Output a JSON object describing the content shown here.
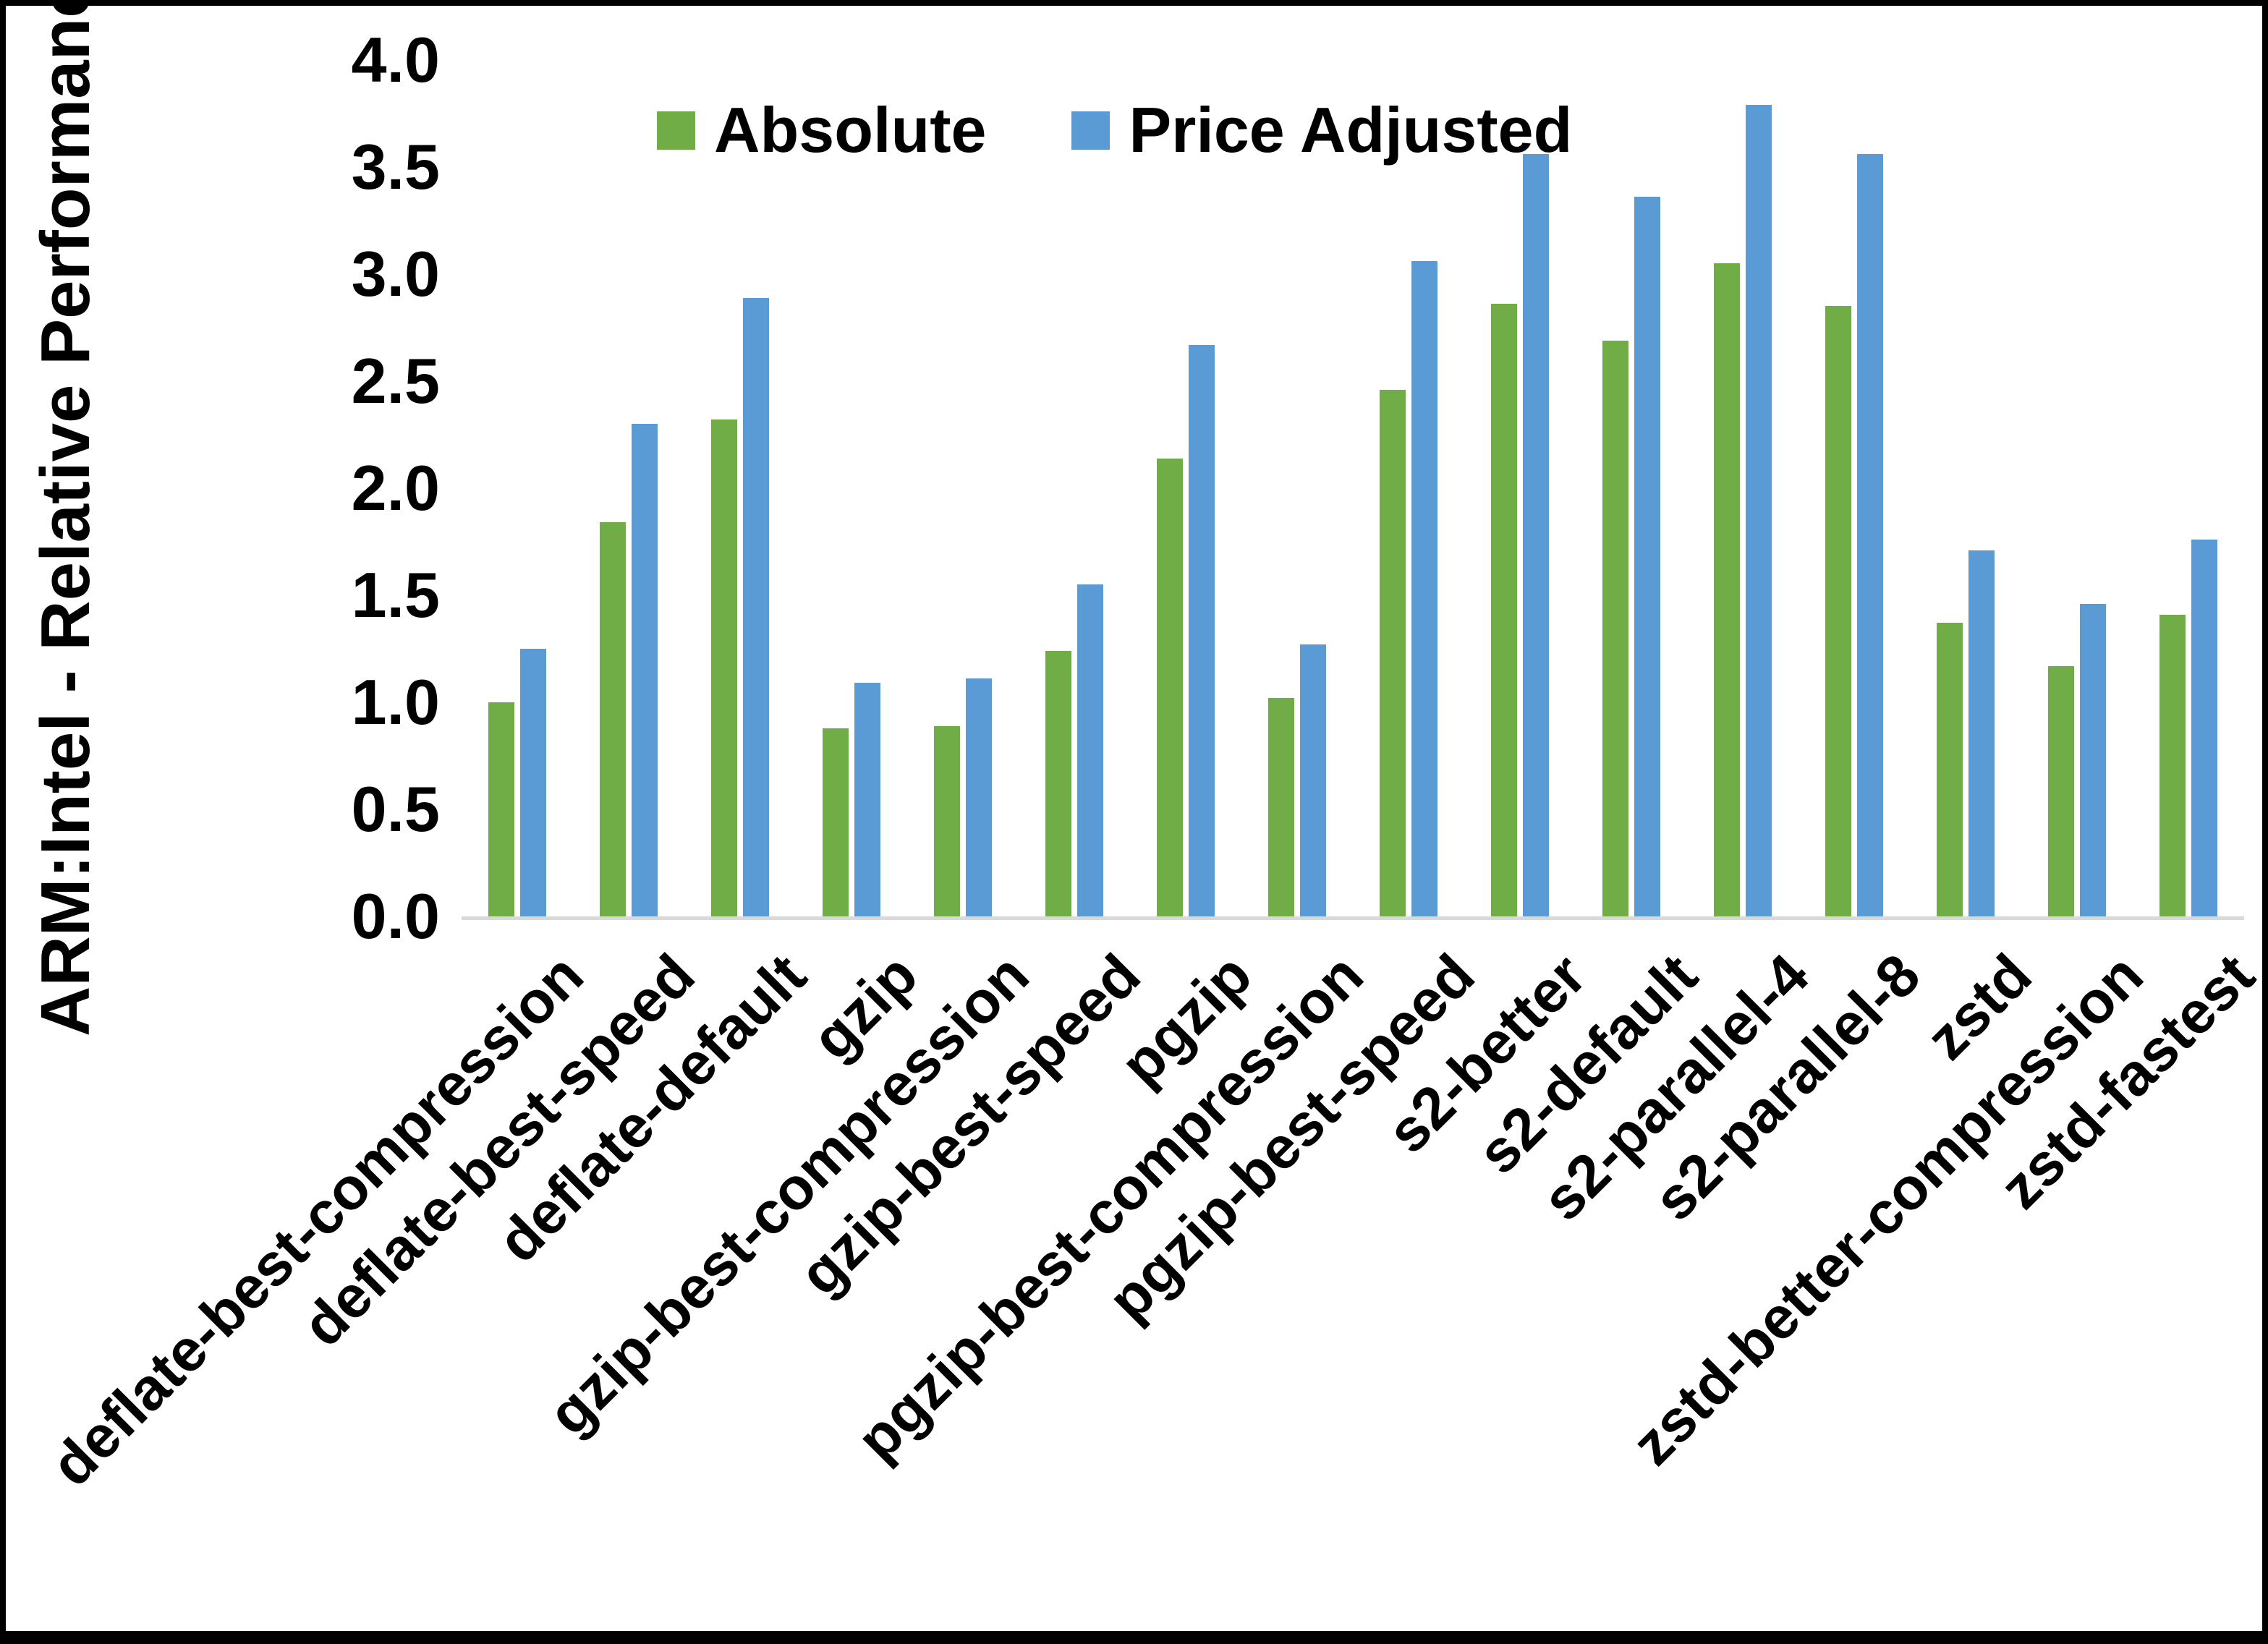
{
  "chart_data": {
    "type": "bar",
    "title": "",
    "xlabel": "",
    "ylabel": "ARM:Intel - Relative Performance",
    "ylim": [
      0.0,
      4.0
    ],
    "ytick_step": 0.5,
    "ytick_labels": [
      "4.0",
      "3.5",
      "3.0",
      "2.5",
      "2.0",
      "1.5",
      "1.0",
      "0.5",
      "0.0"
    ],
    "grid": false,
    "legend_position": "top-center",
    "axis_line_color": "#D9D9D9",
    "text_color": "#000000",
    "background_color": "#FFFFFF",
    "categories": [
      "deflate-best-compression",
      "deflate-best-speed",
      "deflate-default",
      "gzip",
      "gzip-best-compression",
      "gzip-best-speed",
      "pgzip",
      "pgzip-best-compression",
      "pgzip-best-speed",
      "s2-better",
      "s2-default",
      "s2-parallel-4",
      "s2-parallel-8",
      "zstd",
      "zstd-better-compression",
      "zstd-fastest"
    ],
    "series": [
      {
        "name": "Absolute",
        "color": "#70AD47",
        "values": [
          1.0,
          1.84,
          2.32,
          0.88,
          0.89,
          1.24,
          2.14,
          1.02,
          2.46,
          2.86,
          2.69,
          3.05,
          2.85,
          1.37,
          1.17,
          1.41
        ]
      },
      {
        "name": "Price Adjusted",
        "color": "#5B9BD5",
        "values": [
          1.25,
          2.3,
          2.89,
          1.09,
          1.11,
          1.55,
          2.67,
          1.27,
          3.06,
          3.56,
          3.36,
          3.79,
          3.56,
          1.71,
          1.46,
          1.76
        ]
      }
    ]
  }
}
